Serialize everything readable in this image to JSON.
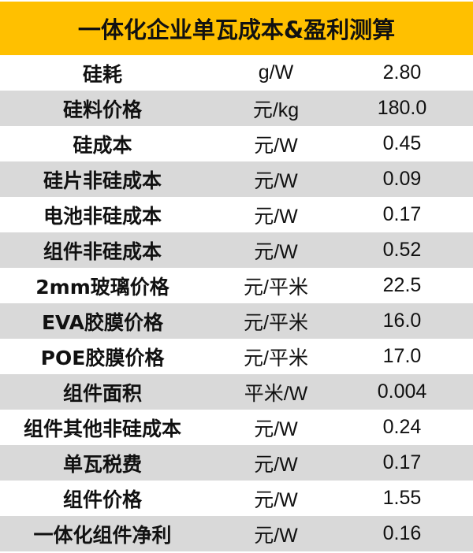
{
  "title": "一体化企业单瓦成本&盈利测算",
  "colors": {
    "header": "#FFC000",
    "alt_row": "#d9d9d9"
  },
  "rows": [
    {
      "item": "硅耗",
      "unit": "g/W",
      "value": "2.80"
    },
    {
      "item": "硅料价格",
      "unit": "元/kg",
      "value": "180.0"
    },
    {
      "item": "硅成本",
      "unit": "元/W",
      "value": "0.45"
    },
    {
      "item": "硅片非硅成本",
      "unit": "元/W",
      "value": "0.09"
    },
    {
      "item": "电池非硅成本",
      "unit": "元/W",
      "value": "0.17"
    },
    {
      "item": "组件非硅成本",
      "unit": "元/W",
      "value": "0.52"
    },
    {
      "item": "2mm玻璃价格",
      "unit": "元/平米",
      "value": "22.5"
    },
    {
      "item": "EVA胶膜价格",
      "unit": "元/平米",
      "value": "16.0"
    },
    {
      "item": "POE胶膜价格",
      "unit": "元/平米",
      "value": "17.0"
    },
    {
      "item": "组件面积",
      "unit": "平米/W",
      "value": "0.004"
    },
    {
      "item": "组件其他非硅成本",
      "unit": "元/W",
      "value": "0.24"
    },
    {
      "item": "单瓦税费",
      "unit": "元/W",
      "value": "0.17"
    },
    {
      "item": "组件价格",
      "unit": "元/W",
      "value": "1.55"
    },
    {
      "item": "一体化组件净利",
      "unit": "元/W",
      "value": "0.16"
    }
  ]
}
